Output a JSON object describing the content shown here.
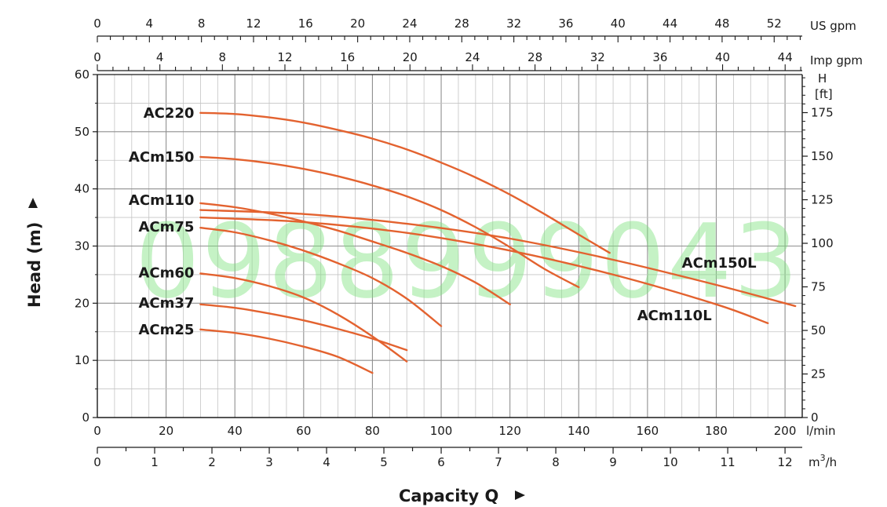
{
  "chart_data": {
    "type": "line",
    "x": {
      "unit": "l/min",
      "range": [
        0,
        205
      ],
      "ticks": [
        0,
        20,
        40,
        60,
        80,
        100,
        120,
        140,
        160,
        180,
        200
      ]
    },
    "y": {
      "unit": "m",
      "range": [
        0,
        60
      ],
      "ticks": [
        0,
        10,
        20,
        30,
        40,
        50,
        60
      ]
    },
    "secondary_axes": {
      "us_gpm": {
        "unit": "US gpm",
        "ticks": [
          0,
          4,
          8,
          12,
          16,
          20,
          24,
          28,
          32,
          36,
          40,
          44,
          48,
          52
        ]
      },
      "imp_gpm": {
        "unit": "Imp gpm",
        "ticks": [
          0,
          4,
          8,
          12,
          16,
          20,
          24,
          28,
          32,
          36,
          40,
          44
        ]
      },
      "m3h": {
        "unit": "m³/h",
        "ticks": [
          0,
          1,
          2,
          3,
          4,
          5,
          6,
          7,
          8,
          9,
          10,
          11,
          12
        ]
      },
      "ft": {
        "unit_lines": [
          "H",
          "[ft]"
        ],
        "ticks": [
          0,
          25,
          50,
          75,
          100,
          125,
          150,
          175
        ]
      }
    },
    "xlabel": "Capacity Q",
    "ylabel": "Head (m)",
    "grid": true,
    "curve_color": "#e3622f",
    "series": [
      {
        "name": "AC220",
        "x": [
          30,
          40,
          50,
          60,
          70,
          80,
          90,
          100,
          110,
          120,
          130,
          140,
          149
        ],
        "y": [
          53.3,
          53.1,
          52.5,
          51.6,
          50.3,
          48.8,
          46.9,
          44.6,
          42.0,
          39.0,
          35.6,
          32.0,
          28.8
        ]
      },
      {
        "name": "ACm150",
        "x": [
          30,
          40,
          50,
          60,
          70,
          80,
          90,
          100,
          110,
          120,
          130,
          140
        ],
        "y": [
          45.6,
          45.2,
          44.5,
          43.5,
          42.2,
          40.6,
          38.7,
          36.3,
          33.3,
          29.8,
          26.0,
          22.8
        ]
      },
      {
        "name": "ACm110",
        "x": [
          30,
          40,
          50,
          60,
          70,
          80,
          90,
          100,
          110,
          120
        ],
        "y": [
          37.5,
          36.8,
          35.7,
          34.3,
          32.7,
          30.8,
          28.8,
          26.5,
          23.6,
          19.8
        ]
      },
      {
        "name": "ACm75",
        "x": [
          30,
          40,
          50,
          60,
          70,
          80,
          90,
          100
        ],
        "y": [
          33.2,
          32.4,
          31.0,
          29.2,
          27.0,
          24.4,
          20.8,
          16.0
        ]
      },
      {
        "name": "ACm60",
        "x": [
          30,
          40,
          50,
          60,
          70,
          80,
          90
        ],
        "y": [
          25.2,
          24.4,
          23.0,
          21.0,
          18.0,
          14.2,
          9.8
        ]
      },
      {
        "name": "ACm37",
        "x": [
          30,
          40,
          50,
          60,
          70,
          80,
          90
        ],
        "y": [
          19.8,
          19.2,
          18.2,
          17.0,
          15.5,
          13.8,
          11.8
        ]
      },
      {
        "name": "ACm25",
        "x": [
          30,
          40,
          50,
          60,
          70,
          80
        ],
        "y": [
          15.4,
          14.8,
          13.8,
          12.4,
          10.6,
          7.8
        ]
      },
      {
        "name": "ACm150L",
        "x": [
          30,
          60,
          90,
          120,
          150,
          180,
          203
        ],
        "y": [
          36.3,
          35.6,
          33.9,
          31.3,
          27.6,
          23.2,
          19.5
        ]
      },
      {
        "name": "ACm110L",
        "x": [
          30,
          60,
          90,
          120,
          150,
          180,
          195
        ],
        "y": [
          35.0,
          34.2,
          32.3,
          29.2,
          25.0,
          19.8,
          16.5
        ]
      }
    ]
  },
  "labels": {
    "us_gpm_unit": "US gpm",
    "imp_gpm_unit": "Imp gpm",
    "lmin_unit": "l/min",
    "m3h_unit_base": "m",
    "m3h_unit_sup": "3",
    "m3h_unit_tail": "/h",
    "ft_unit_line1": "H",
    "ft_unit_line2": "[ft]",
    "xlabel": "Capacity Q",
    "ylabel": "Head (m)",
    "watermark": "0988999043"
  }
}
